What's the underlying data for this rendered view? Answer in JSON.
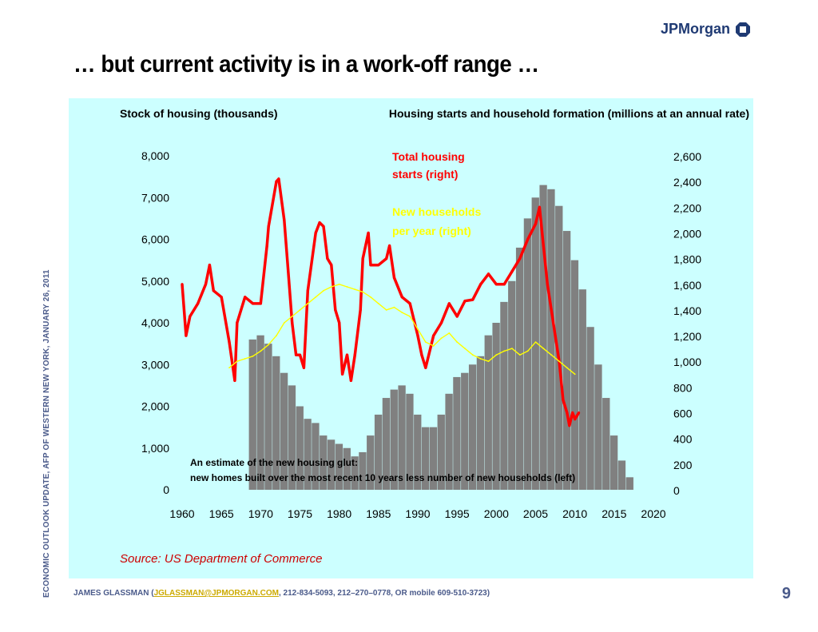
{
  "logo": {
    "text": "JPMorgan"
  },
  "slide": {
    "title": "… but current activity is in a work-off range …",
    "side_text": "ECONOMIC OUTLOOK UPDATE, AFP OF WESTERN NEW YORK, JANUARY 26, 2011",
    "page_number": "9"
  },
  "footer": {
    "prefix": "JAMES GLASSMAN (",
    "email": "JGLASSMAN@JPMORGAN.COM",
    "suffix": ", 212-834-5093, 212–270–0778, OR mobile 609-510-3723)"
  },
  "chart_data": {
    "type": "line",
    "left_axis_title": "Stock of housing (thousands)",
    "right_axis_title": "Housing starts and household formation (millions at an annual rate)",
    "x_ticks": [
      "1960",
      "1965",
      "1970",
      "1975",
      "1980",
      "1985",
      "1990",
      "1995",
      "2000",
      "2005",
      "2010",
      "2015",
      "2020"
    ],
    "xlim": [
      1960,
      2020
    ],
    "left_ticks": [
      "0",
      "1,000",
      "2,000",
      "3,000",
      "4,000",
      "5,000",
      "6,000",
      "7,000",
      "8,000"
    ],
    "left_ylim": [
      0,
      8000
    ],
    "right_ticks": [
      "0",
      "200",
      "400",
      "600",
      "800",
      "1,000",
      "1,200",
      "1,400",
      "1,600",
      "1,800",
      "2,000",
      "2,200",
      "2,400",
      "2,600"
    ],
    "right_ylim": [
      0,
      2600
    ],
    "series": [
      {
        "name": "Total housing starts (right)",
        "label_lines": [
          "Total housing",
          "starts (right)"
        ],
        "axis": "right",
        "color": "#ff0000",
        "x": [
          1960,
          1960.5,
          1961,
          1962,
          1963,
          1963.5,
          1964,
          1965,
          1966,
          1966.7,
          1967,
          1968,
          1969,
          1970,
          1970.8,
          1971,
          1972,
          1972.3,
          1973,
          1973.5,
          1974,
          1974.5,
          1975,
          1975.5,
          1976,
          1977,
          1977.5,
          1978,
          1978.5,
          1979,
          1979.5,
          1980,
          1980.4,
          1981,
          1981.5,
          1982,
          1982.7,
          1983,
          1983.7,
          1984,
          1985,
          1986,
          1986.4,
          1987,
          1988,
          1989,
          1990,
          1990.5,
          1991,
          1992,
          1993,
          1994,
          1995,
          1996,
          1997,
          1998,
          1999,
          2000,
          2001,
          2002,
          2003,
          2004,
          2005,
          2005.5,
          2006,
          2006.5,
          2007,
          2007.5,
          2008,
          2008.5,
          2009,
          2009.3,
          2009.7,
          2010,
          2010.5
        ],
        "y": [
          1600,
          1200,
          1350,
          1450,
          1600,
          1750,
          1550,
          1500,
          1150,
          850,
          1300,
          1500,
          1450,
          1450,
          1900,
          2050,
          2400,
          2420,
          2100,
          1700,
          1300,
          1050,
          1050,
          950,
          1550,
          2000,
          2080,
          2050,
          1800,
          1750,
          1400,
          1300,
          900,
          1050,
          850,
          1050,
          1400,
          1800,
          2000,
          1750,
          1750,
          1800,
          1900,
          1650,
          1500,
          1450,
          1200,
          1050,
          950,
          1200,
          1300,
          1450,
          1350,
          1470,
          1480,
          1600,
          1680,
          1600,
          1600,
          1700,
          1800,
          1950,
          2070,
          2200,
          1900,
          1600,
          1400,
          1200,
          1000,
          700,
          600,
          500,
          600,
          550,
          600
        ]
      },
      {
        "name": "New households per year (right)",
        "label_lines": [
          "New households",
          "per year (right)"
        ],
        "axis": "right",
        "color": "#ffff00",
        "x": [
          1966,
          1967,
          1968,
          1969,
          1970,
          1971,
          1972,
          1973,
          1974,
          1975,
          1976,
          1977,
          1978,
          1979,
          1980,
          1981,
          1982,
          1983,
          1984,
          1985,
          1986,
          1987,
          1988,
          1989,
          1990,
          1991,
          1992,
          1993,
          1994,
          1995,
          1996,
          1997,
          1998,
          1999,
          2000,
          2001,
          2002,
          2003,
          2004,
          2005,
          2006,
          2007,
          2008,
          2009,
          2010
        ],
        "y": [
          950,
          1000,
          1020,
          1040,
          1080,
          1130,
          1200,
          1300,
          1350,
          1400,
          1450,
          1500,
          1550,
          1580,
          1600,
          1580,
          1560,
          1540,
          1500,
          1450,
          1400,
          1420,
          1380,
          1350,
          1250,
          1150,
          1120,
          1180,
          1220,
          1150,
          1100,
          1050,
          1020,
          1000,
          1050,
          1080,
          1100,
          1050,
          1080,
          1150,
          1100,
          1050,
          1000,
          950,
          900
        ]
      },
      {
        "name": "An estimate of the new housing glut: new homes built over the most recent 10 years less number of new households (left)",
        "label_lines": [
          "An estimate of the new housing glut:",
          "new homes built over the most recent 10 years less number of new households (left)"
        ],
        "axis": "left",
        "type": "bar",
        "color": "#808080",
        "x": [
          1969,
          1970,
          1971,
          1972,
          1973,
          1974,
          1975,
          1976,
          1977,
          1978,
          1979,
          1980,
          1981,
          1982,
          1983,
          1984,
          1985,
          1986,
          1987,
          1988,
          1989,
          1990,
          1991,
          1992,
          1993,
          1994,
          1995,
          1996,
          1997,
          1998,
          1999,
          2000,
          2001,
          2002,
          2003,
          2004,
          2005,
          2006,
          2007,
          2008,
          2009,
          2010,
          2011,
          2012,
          2013,
          2014,
          2015,
          2016,
          2017
        ],
        "y": [
          3600,
          3700,
          3500,
          3200,
          2800,
          2500,
          2000,
          1700,
          1600,
          1300,
          1200,
          1100,
          1000,
          800,
          900,
          1300,
          1800,
          2200,
          2400,
          2500,
          2300,
          1800,
          1500,
          1500,
          1800,
          2300,
          2700,
          2800,
          3000,
          3200,
          3700,
          4000,
          4500,
          5000,
          5800,
          6500,
          7000,
          7300,
          7200,
          6800,
          6200,
          5500,
          4800,
          3900,
          3000,
          2200,
          1300,
          700,
          300
        ]
      }
    ],
    "source": "Source: US Department of Commerce"
  }
}
